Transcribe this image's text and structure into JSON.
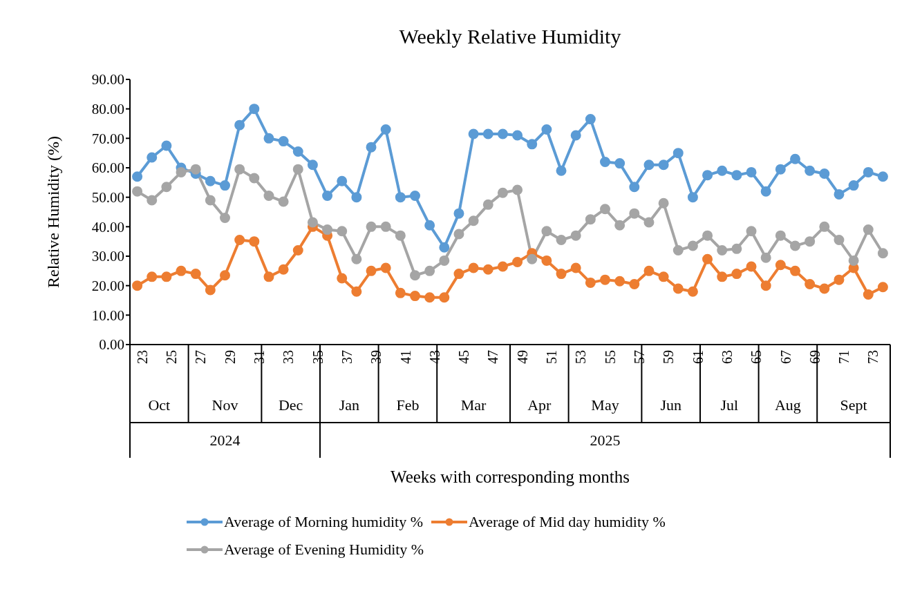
{
  "chart_data": {
    "type": "line",
    "title": "Weekly Relative Humidity",
    "ylabel": "Relative Humidity (%)",
    "x": [
      23,
      24,
      25,
      26,
      27,
      28,
      29,
      30,
      31,
      32,
      33,
      34,
      35,
      36,
      37,
      38,
      39,
      40,
      41,
      42,
      43,
      44,
      45,
      46,
      47,
      48,
      49,
      50,
      51,
      52,
      53,
      54,
      55,
      56,
      57,
      58,
      59,
      60,
      61,
      62,
      63,
      64,
      65,
      66,
      67,
      68,
      69,
      70,
      71,
      72,
      73,
      74
    ],
    "xlim": [
      22.5,
      74.5
    ],
    "xticks": [
      23,
      25,
      27,
      29,
      31,
      33,
      35,
      37,
      39,
      41,
      43,
      45,
      47,
      49,
      51,
      53,
      55,
      57,
      59,
      61,
      63,
      65,
      67,
      69,
      71,
      73
    ],
    "ylim": [
      0,
      90
    ],
    "yticks": [
      {
        "value": 0,
        "label": "0.00"
      },
      {
        "value": 10,
        "label": "10.00"
      },
      {
        "value": 20,
        "label": "20.00"
      },
      {
        "value": 30,
        "label": "30.00"
      },
      {
        "value": 40,
        "label": "40.00"
      },
      {
        "value": 50,
        "label": "50.00"
      },
      {
        "value": 60,
        "label": "60.00"
      },
      {
        "value": 70,
        "label": "70.00"
      },
      {
        "value": 80,
        "label": "80.00"
      },
      {
        "value": 90,
        "label": "90.00"
      }
    ],
    "series": [
      {
        "name": "Average of Morning humidity %",
        "color": "#5b9bd5",
        "values": [
          57,
          63.5,
          67.5,
          60,
          58,
          55.5,
          54,
          74.5,
          80,
          70,
          69,
          65.5,
          61,
          50.5,
          55.5,
          50,
          67,
          73,
          50,
          50.5,
          40.5,
          33,
          44.5,
          71.5,
          71.5,
          71.5,
          71,
          68,
          73,
          59,
          71,
          76.5,
          62,
          61.5,
          53.5,
          61,
          61,
          65,
          50,
          57.5,
          59,
          57.5,
          58.5,
          52,
          59.5,
          63,
          59,
          58,
          51,
          54,
          58.5,
          57
        ]
      },
      {
        "name": "Average of Mid day humidity %",
        "color": "#ed7d31",
        "values": [
          20,
          23,
          23,
          25,
          24,
          18.5,
          23.5,
          35.5,
          35,
          23,
          25.5,
          32,
          40,
          37,
          22.5,
          18,
          25,
          26,
          17.5,
          16.5,
          16,
          16,
          24,
          26,
          25.5,
          26.5,
          28,
          31,
          28.5,
          24,
          26,
          21,
          22,
          21.5,
          20.5,
          25,
          23,
          19,
          18,
          29,
          23,
          24,
          26.5,
          20,
          27,
          25,
          20.5,
          19,
          22,
          26,
          17,
          19.5
        ]
      },
      {
        "name": "Average of Evening Humidity %",
        "color": "#a5a5a5",
        "values": [
          52,
          49,
          53.5,
          58.5,
          59.5,
          49,
          43,
          59.5,
          56.5,
          50.5,
          48.5,
          59.5,
          41.5,
          39,
          38.5,
          29,
          40,
          40,
          37,
          23.5,
          25,
          28.5,
          37.5,
          42,
          47.5,
          51.5,
          52.5,
          29,
          38.5,
          35.5,
          37,
          42.5,
          46,
          40.5,
          44.5,
          41.5,
          48,
          32,
          33.5,
          37,
          32,
          32.5,
          38.5,
          29.5,
          37,
          33.5,
          35,
          40,
          35.5,
          28.5,
          39,
          31
        ]
      }
    ],
    "annotations": [
      "Oct",
      "Nov",
      "Dec",
      "Jan",
      "Feb",
      "Mar",
      "Apr",
      "May",
      "Jun",
      "Jul",
      "Aug",
      "Sept",
      "2024",
      "2025",
      "Weeks with corresponding months"
    ],
    "grid": false,
    "legend": "bottom",
    "marker": "circle",
    "line_style": "solid"
  }
}
